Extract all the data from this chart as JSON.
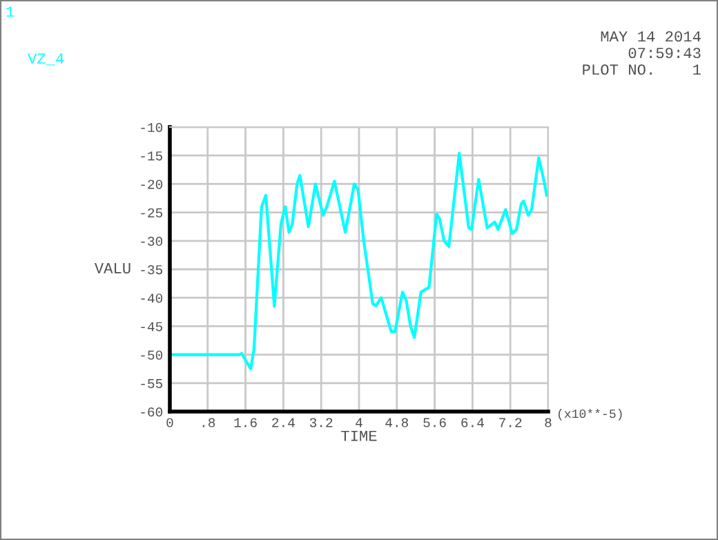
{
  "chart_data": {
    "type": "line",
    "xlabel": "TIME",
    "ylabel": "VALU",
    "annotations": [
      "1",
      "MAY 14 2014",
      "07:59:43",
      "PLOT NO.    1",
      "(x10**-5)"
    ],
    "series": [
      {
        "name": "VZ_4",
        "color": "#00ffff",
        "x": [
          0,
          1.47,
          1.52,
          1.71,
          1.78,
          1.94,
          2.03,
          2.21,
          2.35,
          2.44,
          2.52,
          2.59,
          2.69,
          2.75,
          2.93,
          3.08,
          3.24,
          3.32,
          3.48,
          3.71,
          3.9,
          3.98,
          4.1,
          4.29,
          4.36,
          4.47,
          4.68,
          4.76,
          4.92,
          5.0,
          5.09,
          5.17,
          5.31,
          5.41,
          5.48,
          5.64,
          5.7,
          5.8,
          5.9,
          6.12,
          6.32,
          6.38,
          6.53,
          6.71,
          6.87,
          6.94,
          7.1,
          7.24,
          7.33,
          7.43,
          7.48,
          7.58,
          7.65,
          7.8,
          7.9,
          7.97
        ],
        "values": [
          -50,
          -50,
          -49.8,
          -52.5,
          -49,
          -24,
          -22,
          -41.5,
          -27,
          -24,
          -28.5,
          -27,
          -20,
          -18.5,
          -27.5,
          -20,
          -25.5,
          -24,
          -19.5,
          -28.5,
          -20,
          -21,
          -30,
          -41,
          -41.4,
          -40,
          -45.9,
          -46,
          -39,
          -40.5,
          -45,
          -47,
          -39,
          -38.5,
          -38.2,
          -25.3,
          -26,
          -30,
          -31,
          -14.6,
          -27.7,
          -28,
          -19.2,
          -27.7,
          -26.7,
          -28,
          -24.5,
          -28.7,
          -28,
          -23.5,
          -23,
          -25.5,
          -24.5,
          -15.4,
          -19,
          -22
        ]
      }
    ],
    "xlim": [
      0,
      8
    ],
    "xticks": [
      0,
      {
        "value": 0.8,
        "label": ".8"
      },
      1.6,
      2.4,
      3.2,
      4,
      4.8,
      5.6,
      6.4,
      7.2,
      8
    ],
    "ylim": [
      -60,
      -10
    ],
    "yticks": [
      -60,
      -55,
      -50,
      -45,
      -40,
      -35,
      -30,
      -25,
      -20,
      -15,
      -10
    ],
    "grid": true,
    "legend": "top left",
    "line_style": "solid",
    "marker": "none"
  }
}
